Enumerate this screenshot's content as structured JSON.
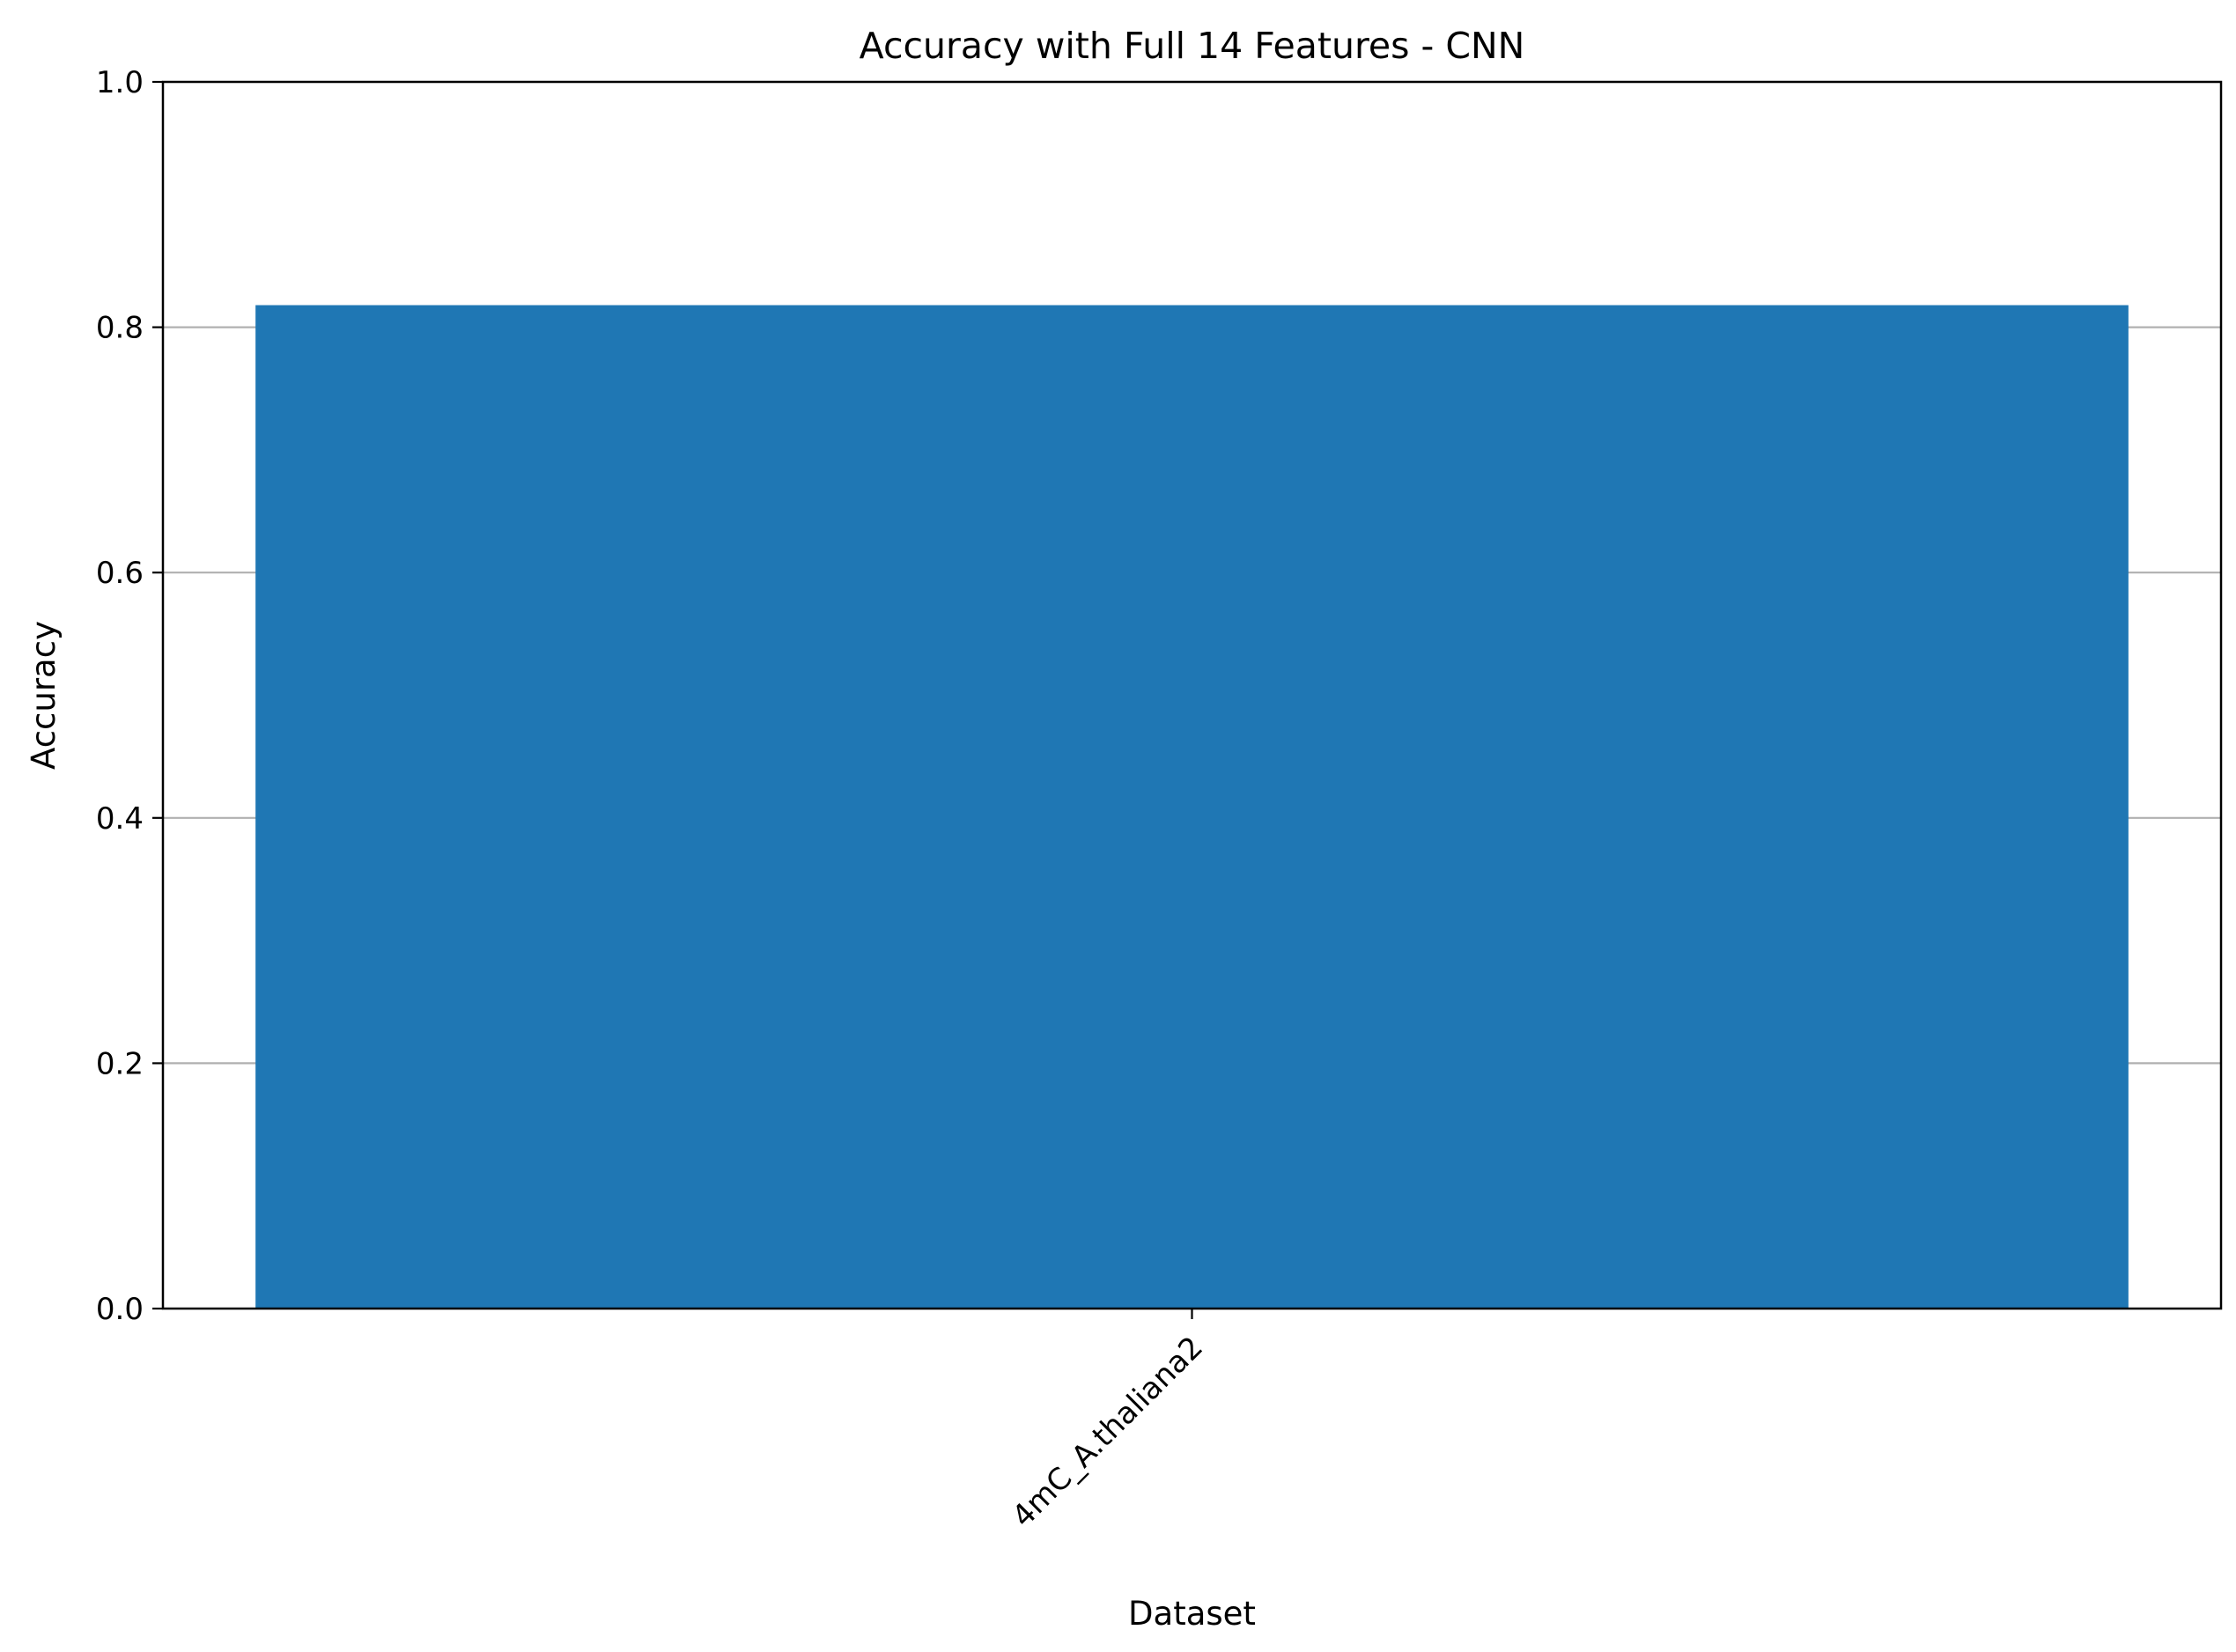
{
  "chart_data": {
    "type": "bar",
    "title": "Accuracy with Full 14 Features - CNN",
    "xlabel": "Dataset",
    "ylabel": "Accuracy",
    "categories": [
      "4mC_A.thaliana2"
    ],
    "values": [
      0.818
    ],
    "ylim": [
      0,
      1.0
    ],
    "yticks": [
      "0.0",
      "0.2",
      "0.4",
      "0.6",
      "0.8",
      "1.0"
    ],
    "grid": "y-axis",
    "legend": "none",
    "bar_color": "#1f77b4",
    "grid_color": "#b0b0b0"
  }
}
